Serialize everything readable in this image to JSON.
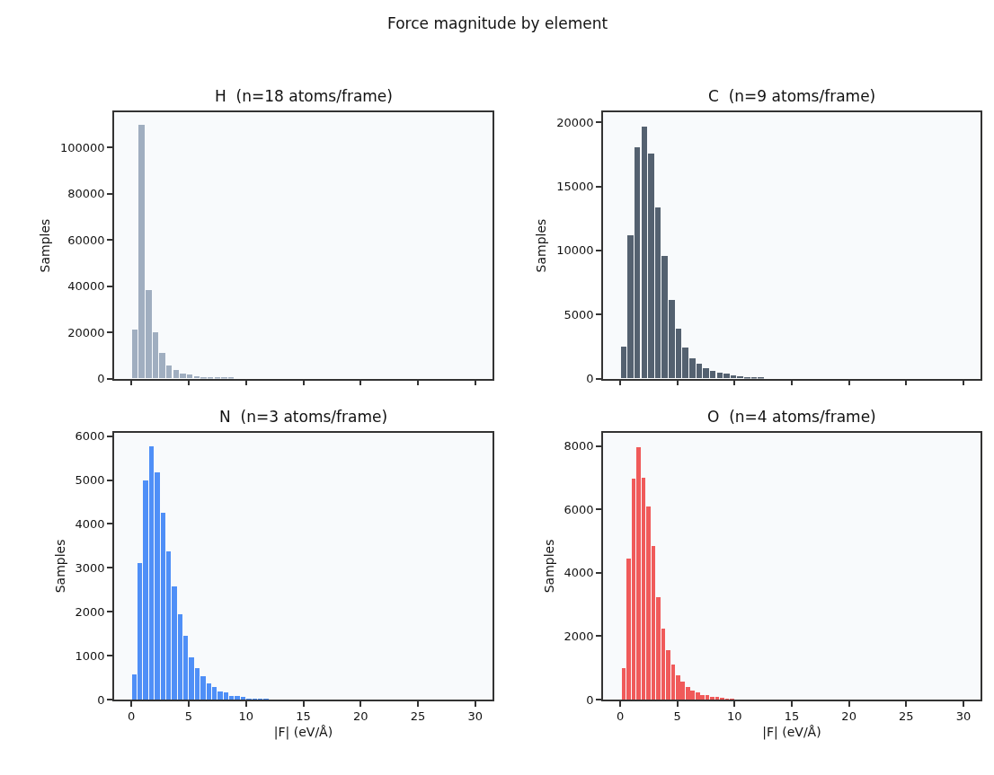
{
  "chart_data": [
    {
      "type": "histogram",
      "title": "H  (n=18 atoms/frame)",
      "ylabel": "Samples",
      "annotations": [
        "Force magnitude by element"
      ],
      "color": "#a0aec0",
      "bins": [
        0,
        0.6,
        1.2,
        1.8,
        2.4,
        3.0,
        3.6,
        4.2,
        4.8,
        5.4,
        6.0,
        6.6,
        7.2,
        7.8,
        8.4,
        9.0
      ],
      "values": [
        21000,
        109500,
        38200,
        20000,
        10800,
        5700,
        3400,
        2200,
        1700,
        1000,
        600,
        500,
        300,
        200,
        100
      ],
      "xlim": [
        -1.5,
        31.5
      ],
      "xticks": [
        0,
        5,
        10,
        15,
        20,
        25,
        30
      ],
      "ylim": [
        0,
        115000
      ],
      "yticks": [
        0,
        20000,
        40000,
        60000,
        80000,
        100000
      ],
      "tick_labels": "y",
      "grid": false
    },
    {
      "type": "histogram",
      "title": "C  (n=9 atoms/frame)",
      "ylabel": "Samples",
      "color": "#546170",
      "bins": [
        0,
        0.6,
        1.2,
        1.8,
        2.4,
        3.0,
        3.6,
        4.2,
        4.8,
        5.4,
        6.0,
        6.6,
        7.2,
        7.8,
        8.4,
        9.0,
        9.6,
        10.2,
        10.8,
        11.4,
        12.0,
        12.6
      ],
      "values": [
        2470,
        11130,
        18000,
        19630,
        17550,
        13350,
        9560,
        6140,
        3860,
        2400,
        1570,
        1150,
        790,
        600,
        460,
        370,
        230,
        160,
        90,
        70,
        30
      ],
      "xlim": [
        -1.5,
        31.5
      ],
      "xticks": [
        0,
        5,
        10,
        15,
        20,
        25,
        30
      ],
      "ylim": [
        0,
        20760
      ],
      "yticks": [
        0,
        5000,
        10000,
        15000,
        20000
      ],
      "tick_labels": "y",
      "grid": false
    },
    {
      "type": "histogram",
      "title": "N  (n=3 atoms/frame)",
      "xlabel": "|F| (eV/Å)",
      "ylabel": "Samples",
      "color": "#4f8ff7",
      "bins": [
        0,
        0.5,
        1.0,
        1.5,
        2.0,
        2.5,
        3.0,
        3.5,
        4.0,
        4.5,
        5.0,
        5.5,
        6.0,
        6.5,
        7.0,
        7.5,
        8.0,
        8.5,
        9.0,
        9.5,
        10.0,
        10.5,
        11.0,
        11.5,
        12.0
      ],
      "values": [
        580,
        3120,
        5000,
        5780,
        5190,
        4260,
        3370,
        2590,
        1950,
        1450,
        970,
        720,
        540,
        380,
        290,
        180,
        160,
        90,
        90,
        70,
        30,
        30,
        20,
        20
      ],
      "xlim": [
        -1.5,
        31.5
      ],
      "xticks": [
        0,
        5,
        10,
        15,
        20,
        25,
        30
      ],
      "ylim": [
        0,
        6080
      ],
      "yticks": [
        0,
        1000,
        2000,
        3000,
        4000,
        5000,
        6000
      ],
      "grid": false
    },
    {
      "type": "histogram",
      "title": "O  (n=4 atoms/frame)",
      "xlabel": "|F| (eV/Å)",
      "ylabel": "Samples",
      "color": "#f05a5a",
      "bins": [
        0.1,
        0.53,
        0.96,
        1.39,
        1.82,
        2.25,
        2.68,
        3.11,
        3.54,
        3.97,
        4.4,
        4.83,
        5.26,
        5.69,
        6.12,
        6.55,
        6.98,
        7.41,
        7.84,
        8.27,
        8.7,
        9.13,
        9.56,
        9.99
      ],
      "values": [
        1000,
        4450,
        6970,
        7980,
        6990,
        6090,
        4840,
        3230,
        2250,
        1570,
        1110,
        780,
        570,
        410,
        300,
        220,
        160,
        160,
        80,
        80,
        50,
        30,
        20
      ],
      "xlim": [
        -1.5,
        31.5
      ],
      "xticks": [
        0,
        5,
        10,
        15,
        20,
        25,
        30
      ],
      "ylim": [
        0,
        8420
      ],
      "yticks": [
        0,
        2000,
        4000,
        6000,
        8000
      ],
      "grid": false
    }
  ]
}
